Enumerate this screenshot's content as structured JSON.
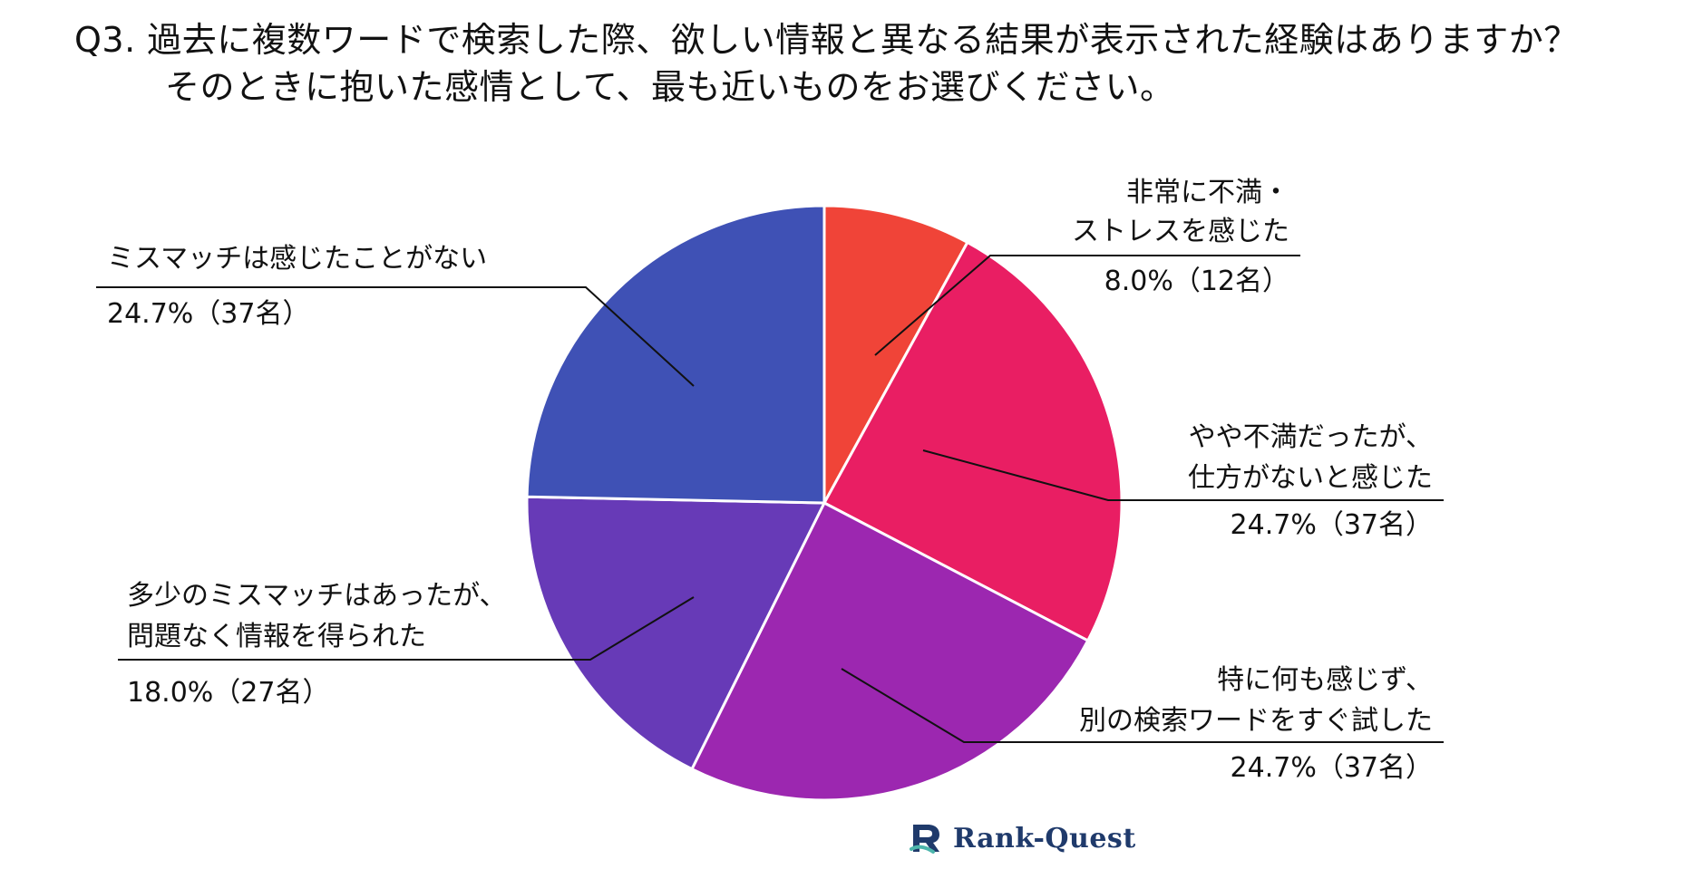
{
  "title": {
    "line1": "Q3. 過去に複数ワードで検索した際、欲しい情報と異なる結果が表示された経験はありますか？",
    "line2": "そのときに抱いた感情として、最も近いものをお選びください。"
  },
  "chart_data": {
    "type": "pie",
    "start_angle_deg": 0,
    "direction": "clockwise",
    "slices": [
      {
        "label_lines": [
          "非常に不満・",
          "ストレスを感じた"
        ],
        "value_text": "8.0%（12名）",
        "percent": 8.0,
        "count": 12,
        "color": "#f04438"
      },
      {
        "label_lines": [
          "やや不満だったが、",
          "仕方がないと感じた"
        ],
        "value_text": "24.7%（37名）",
        "percent": 24.7,
        "count": 37,
        "color": "#e91e63"
      },
      {
        "label_lines": [
          "特に何も感じず、",
          "別の検索ワードをすぐ試した"
        ],
        "value_text": "24.7%（37名）",
        "percent": 24.7,
        "count": 37,
        "color": "#9c27b0"
      },
      {
        "label_lines": [
          "多少のミスマッチはあったが、",
          "問題なく情報を得られた"
        ],
        "value_text": "18.0%（27名）",
        "percent": 18.0,
        "count": 27,
        "color": "#673ab7"
      },
      {
        "label_lines": [
          "ミスマッチは感じたことがない"
        ],
        "value_text": "24.7%（37名）",
        "percent": 24.7,
        "count": 37,
        "color": "#3f51b5"
      }
    ]
  },
  "logo": {
    "text": "Rank-Quest",
    "color": "#1f3a6b"
  }
}
